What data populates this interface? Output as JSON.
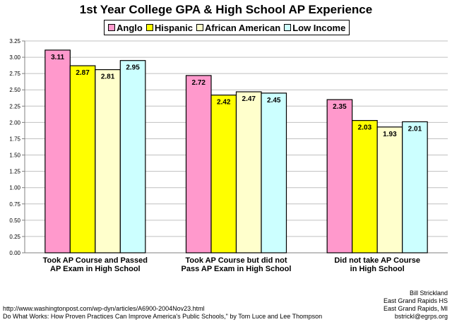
{
  "chart_data": {
    "type": "bar",
    "title": "1st Year College GPA & High School AP Experience",
    "categories": [
      [
        "Took AP Course and Passed",
        "AP Exam in High School"
      ],
      [
        "Took AP Course but did not",
        "Pass AP Exam in High School"
      ],
      [
        "Did not take AP Course",
        "in High School"
      ]
    ],
    "series": [
      {
        "name": "Anglo",
        "color": "#ff99cc",
        "values": [
          3.11,
          2.72,
          2.35
        ]
      },
      {
        "name": "Hispanic",
        "color": "#ffff00",
        "values": [
          2.87,
          2.42,
          2.03
        ]
      },
      {
        "name": "African American",
        "color": "#ffffcc",
        "values": [
          2.81,
          2.47,
          1.93
        ]
      },
      {
        "name": "Low Income",
        "color": "#ccffff",
        "values": [
          2.95,
          2.45,
          2.01
        ]
      }
    ],
    "ylim": [
      0,
      3.25
    ],
    "yticks": [
      "0.00",
      "0.25",
      "0.50",
      "0.75",
      "1.00",
      "1.25",
      "1.50",
      "1.75",
      "2.00",
      "2.25",
      "2.50",
      "2.75",
      "3.00",
      "3.25"
    ],
    "grid": true,
    "legend_position": "top"
  },
  "footer": {
    "source_lines": [
      "http://www.washingtonpost.com/wp-dyn/articles/A6900-2004Nov23.html",
      "Do What Works: How Proven Practices Can Improve America's Public Schools,\" by Tom Luce and Lee Thompson"
    ],
    "author_lines": [
      "Bill Strickland",
      "East Grand Rapids HS",
      "East Grand Rapids, MI",
      "bstrickl@egrps.org"
    ]
  }
}
